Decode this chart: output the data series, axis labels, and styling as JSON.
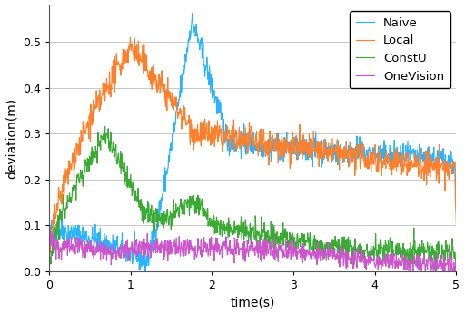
{
  "title": "",
  "xlabel": "time(s)",
  "ylabel": "deviation(m)",
  "xlim": [
    0,
    5
  ],
  "ylim": [
    0.0,
    0.58
  ],
  "yticks": [
    0.0,
    0.1,
    0.2,
    0.3,
    0.4,
    0.5
  ],
  "xticks": [
    0,
    1,
    2,
    3,
    4,
    5
  ],
  "colors": {
    "Naive": "#29b2ff",
    "Local": "#ff7f2a",
    "ConstU": "#3aaa35",
    "OneVision": "#cc55cc"
  },
  "legend_labels": [
    "Naive",
    "Local",
    "ConstU",
    "OneVision"
  ],
  "grid_color": "#c8c8c8",
  "background_color": "#ffffff",
  "seed": 42,
  "n_points": 1000
}
